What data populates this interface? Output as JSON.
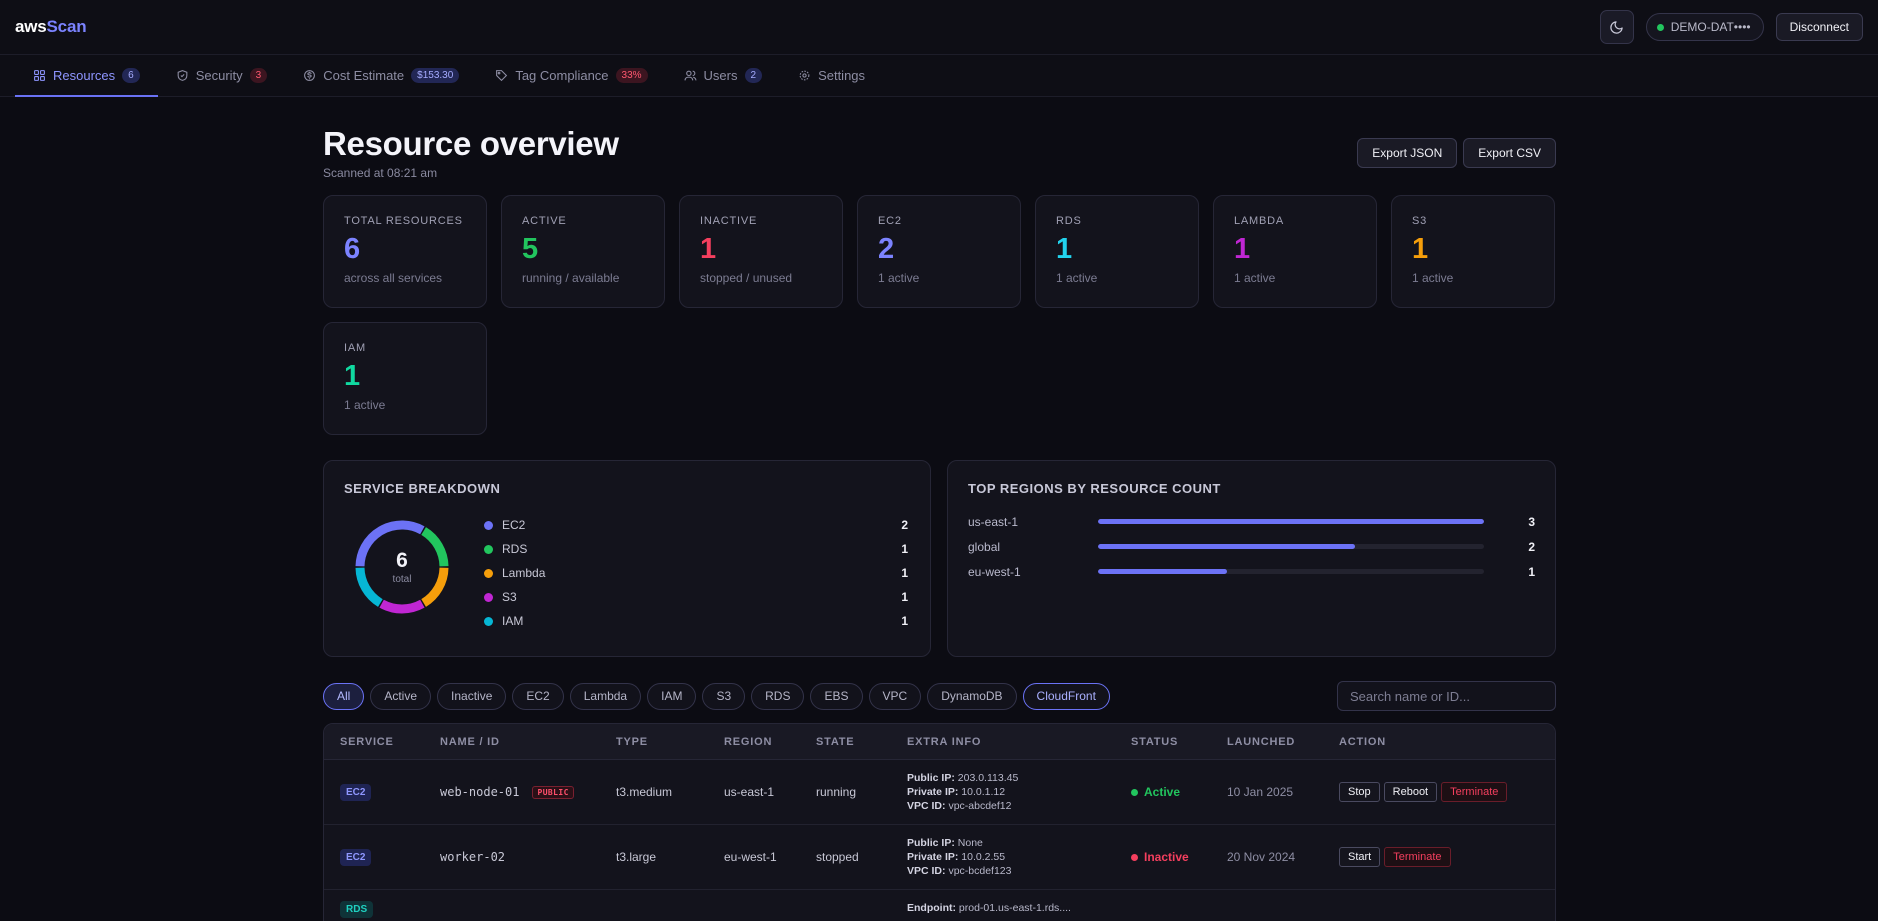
{
  "header": {
    "logo_aws": "aws",
    "logo_scan": "Scan",
    "account_label": "DEMO-DAT••••",
    "disconnect_label": "Disconnect"
  },
  "tabs": [
    {
      "label": "Resources",
      "badge": "6",
      "icon": "grid-icon",
      "active": true
    },
    {
      "label": "Security",
      "badge": "3",
      "icon": "shield-icon"
    },
    {
      "label": "Cost Estimate",
      "badge": "$153.30",
      "icon": "dollar-icon"
    },
    {
      "label": "Tag Compliance",
      "badge": "33%",
      "icon": "tag-icon"
    },
    {
      "label": "Users",
      "badge": "2",
      "icon": "users-icon"
    },
    {
      "label": "Settings",
      "badge": "",
      "icon": "gear-icon"
    }
  ],
  "page": {
    "title": "Resource overview",
    "subtitle": "Scanned at 08:21 am",
    "export_json": "Export JSON",
    "export_csv": "Export CSV"
  },
  "stats": [
    {
      "label": "TOTAL RESOURCES",
      "value": "6",
      "sub": "across all services",
      "color": "#7c83ff"
    },
    {
      "label": "ACTIVE",
      "value": "5",
      "sub": "running / available",
      "color": "#22c55e"
    },
    {
      "label": "INACTIVE",
      "value": "1",
      "sub": "stopped / unused",
      "color": "#f43f5e"
    },
    {
      "label": "EC2",
      "value": "2",
      "sub": "1 active",
      "color": "#7c83ff"
    },
    {
      "label": "RDS",
      "value": "1",
      "sub": "1 active",
      "color": "#22d3ee"
    },
    {
      "label": "LAMBDA",
      "value": "1",
      "sub": "1 active",
      "color": "#c026d3"
    },
    {
      "label": "S3",
      "value": "1",
      "sub": "1 active",
      "color": "#f59e0b"
    },
    {
      "label": "IAM",
      "value": "1",
      "sub": "1 active",
      "color": "#10d9a0"
    }
  ],
  "breakdown": {
    "title": "SERVICE BREAKDOWN",
    "total": "6",
    "total_label": "total",
    "items": [
      {
        "name": "EC2",
        "value": 2,
        "color": "#6c72f6"
      },
      {
        "name": "RDS",
        "value": 1,
        "color": "#22c55e"
      },
      {
        "name": "Lambda",
        "value": 1,
        "color": "#f59e0b"
      },
      {
        "name": "S3",
        "value": 1,
        "color": "#c026d3"
      },
      {
        "name": "IAM",
        "value": 1,
        "color": "#06b6d4"
      }
    ]
  },
  "regions": {
    "title": "TOP REGIONS BY RESOURCE COUNT",
    "max": 3,
    "items": [
      {
        "name": "us-east-1",
        "count": 3
      },
      {
        "name": "global",
        "count": 2
      },
      {
        "name": "eu-west-1",
        "count": 1
      }
    ]
  },
  "filters": {
    "chips": [
      "All",
      "Active",
      "Inactive",
      "EC2",
      "Lambda",
      "IAM",
      "S3",
      "RDS",
      "EBS",
      "VPC",
      "DynamoDB",
      "CloudFront"
    ],
    "selected": "All",
    "highlighted": "CloudFront",
    "search_placeholder": "Search name or ID..."
  },
  "table": {
    "columns": [
      "SERVICE",
      "NAME / ID",
      "TYPE",
      "REGION",
      "STATE",
      "EXTRA INFO",
      "STATUS",
      "LAUNCHED",
      "ACTION"
    ],
    "rows": [
      {
        "service": "EC2",
        "name": "web-node-01",
        "public_badge": "PUBLIC",
        "type": "t3.medium",
        "region": "us-east-1",
        "state": "running",
        "extra": [
          {
            "k": "Public IP:",
            "v": "203.0.113.45"
          },
          {
            "k": "Private IP:",
            "v": "10.0.1.12"
          },
          {
            "k": "VPC ID:",
            "v": "vpc-abcdef12"
          }
        ],
        "status": "Active",
        "launched": "10 Jan 2025",
        "actions": [
          "Stop",
          "Reboot",
          "Terminate"
        ]
      },
      {
        "service": "EC2",
        "name": "worker-02",
        "public_badge": "",
        "type": "t3.large",
        "region": "eu-west-1",
        "state": "stopped",
        "extra": [
          {
            "k": "Public IP:",
            "v": "None"
          },
          {
            "k": "Private IP:",
            "v": "10.0.2.55"
          },
          {
            "k": "VPC ID:",
            "v": "vpc-bcdef123"
          }
        ],
        "status": "Inactive",
        "launched": "20 Nov 2024",
        "actions": [
          "Start",
          "Terminate"
        ]
      },
      {
        "service": "RDS",
        "name": "",
        "public_badge": "",
        "type": "",
        "region": "",
        "state": "",
        "extra": [
          {
            "k": "Endpoint:",
            "v": "prod-01.us-east-1.rds...."
          }
        ],
        "status": "",
        "launched": "",
        "actions": []
      }
    ]
  }
}
